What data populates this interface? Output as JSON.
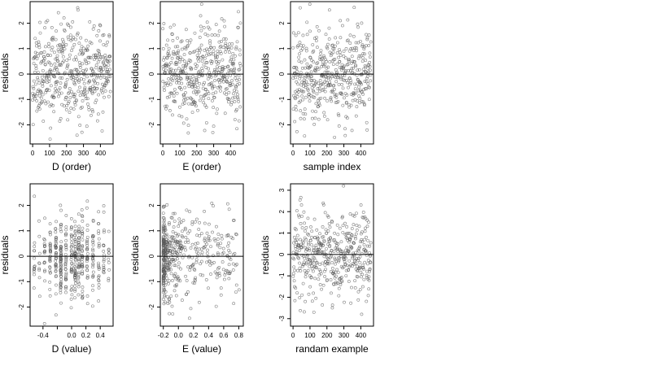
{
  "chart_data": [
    {
      "type": "scatter",
      "xlabel": "D (order)",
      "ylabel": "residuals",
      "xlim": [
        -15,
        475
      ],
      "ylim": [
        -2.75,
        2.85
      ],
      "xticks": [
        0,
        100,
        200,
        300,
        400
      ],
      "yticks": [
        -2,
        -1,
        0,
        1,
        2
      ],
      "reference_line_y": 0,
      "marker": "open-circle",
      "n_points": 460,
      "seed": 11,
      "x_pattern": "index",
      "y_spread": "normal",
      "sd": 0.9
    },
    {
      "type": "scatter",
      "xlabel": "E (order)",
      "ylabel": "residuals",
      "xlim": [
        -15,
        475
      ],
      "ylim": [
        -2.75,
        2.85
      ],
      "xticks": [
        0,
        100,
        200,
        300,
        400
      ],
      "yticks": [
        -2,
        -1,
        0,
        1,
        2
      ],
      "reference_line_y": 0,
      "marker": "open-circle",
      "n_points": 460,
      "seed": 23,
      "x_pattern": "index",
      "y_spread": "normal",
      "sd": 0.9
    },
    {
      "type": "scatter",
      "xlabel": "sample index",
      "ylabel": "residuals",
      "xlim": [
        -15,
        475
      ],
      "ylim": [
        -2.75,
        2.85
      ],
      "xticks": [
        0,
        100,
        200,
        300,
        400
      ],
      "yticks": [
        -2,
        -1,
        0,
        1,
        2
      ],
      "reference_line_y": 0,
      "marker": "open-circle",
      "n_points": 460,
      "seed": 37,
      "x_pattern": "index",
      "y_spread": "normal",
      "sd": 0.9
    },
    {
      "type": "scatter",
      "xlabel": "D (value)",
      "ylabel": "residuals",
      "xlim": [
        -0.58,
        0.58
      ],
      "ylim": [
        -2.75,
        2.85
      ],
      "xticks": [
        -0.4,
        -0.2,
        0.0,
        0.2,
        0.4
      ],
      "xtick_labels": [
        "-0.4",
        "",
        "0.0",
        "0.2",
        "0.4"
      ],
      "yticks": [
        -2,
        -1,
        0,
        1,
        2
      ],
      "reference_line_y": 0,
      "marker": "open-circle",
      "n_points": 460,
      "seed": 41,
      "x_pattern": "clusters",
      "x_clusters": [
        -0.52,
        -0.45,
        -0.38,
        -0.3,
        -0.22,
        -0.15,
        -0.08,
        0.0,
        0.05,
        0.1,
        0.15,
        0.22,
        0.3,
        0.38,
        0.45,
        0.52
      ],
      "cluster_weights": [
        1,
        1,
        2,
        2,
        3,
        3,
        3,
        3,
        4,
        4,
        3,
        3,
        2,
        2,
        1,
        1
      ],
      "y_spread": "normal",
      "sd": 0.85
    },
    {
      "type": "scatter",
      "xlabel": "E (value)",
      "ylabel": "residuals",
      "xlim": [
        -0.24,
        0.86
      ],
      "ylim": [
        -2.75,
        2.85
      ],
      "xticks": [
        -0.2,
        0.0,
        0.2,
        0.4,
        0.6,
        0.8
      ],
      "xtick_labels": [
        "-0.2",
        "0.0",
        "0.2",
        "0.4",
        "0.6",
        "0.8"
      ],
      "yticks": [
        -2,
        -1,
        0,
        1,
        2
      ],
      "reference_line_y": 0,
      "marker": "open-circle",
      "n_points": 460,
      "seed": 53,
      "x_pattern": "skewed",
      "x_min": -0.2,
      "x_max": 0.82,
      "y_spread": "normal",
      "sd": 0.85
    },
    {
      "type": "scatter",
      "xlabel": "randam example",
      "ylabel": "residuals",
      "xlim": [
        -15,
        475
      ],
      "ylim": [
        -3.35,
        3.3
      ],
      "xticks": [
        0,
        100,
        200,
        300,
        400
      ],
      "yticks": [
        -3,
        -2,
        -1,
        0,
        1,
        2,
        3
      ],
      "reference_line_y": 0,
      "marker": "open-circle",
      "n_points": 460,
      "seed": 67,
      "x_pattern": "index",
      "y_spread": "normal",
      "sd": 1.0
    }
  ]
}
